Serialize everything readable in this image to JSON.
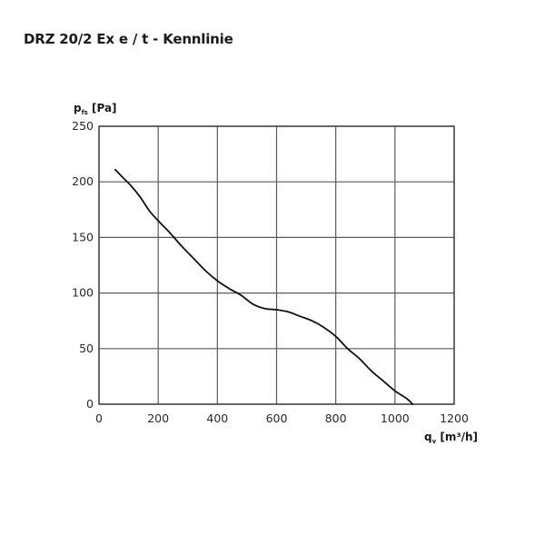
{
  "chart_data": {
    "type": "line",
    "title": "DRZ 20/2 Ex e / t - Kennlinie",
    "ylabel_main": "p",
    "ylabel_sub": "fs",
    "ylabel_unit": " [Pa]",
    "xlabel_main": "q",
    "xlabel_sub": "v",
    "xlabel_unit": " [m³/h]",
    "xlim": [
      0,
      1200
    ],
    "ylim": [
      0,
      250
    ],
    "xticks": [
      0,
      200,
      400,
      600,
      800,
      1000,
      1200
    ],
    "yticks": [
      0,
      50,
      100,
      150,
      200,
      250
    ],
    "grid": true,
    "series": [
      {
        "color": "#111111",
        "x": [
          55,
          80,
          110,
          140,
          170,
          200,
          240,
          280,
          320,
          360,
          400,
          440,
          480,
          520,
          560,
          600,
          640,
          680,
          720,
          760,
          800,
          840,
          880,
          920,
          960,
          1000,
          1040,
          1060
        ],
        "y": [
          211,
          204,
          196,
          186,
          174,
          165,
          154,
          142,
          131,
          120,
          111,
          104,
          98,
          90,
          86,
          85,
          83,
          79,
          75,
          69,
          61,
          50,
          41,
          30,
          21,
          12,
          5,
          0
        ]
      }
    ]
  }
}
